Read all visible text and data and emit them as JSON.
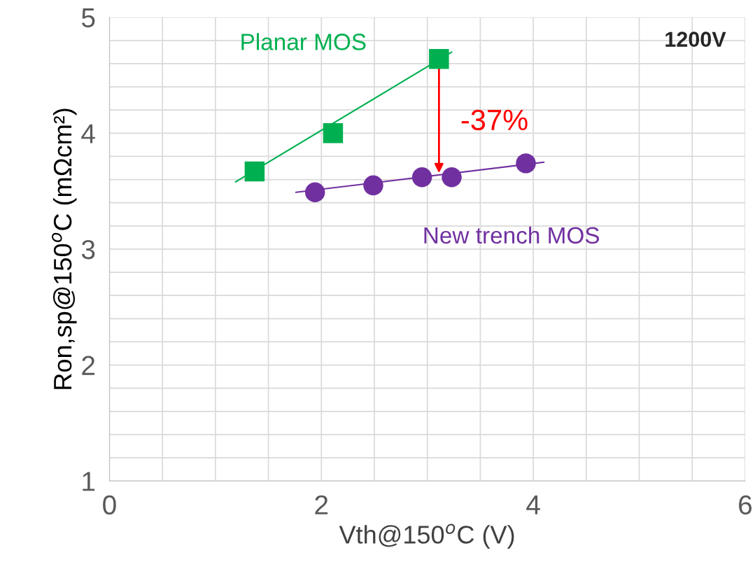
{
  "chart_data": {
    "type": "scatter",
    "xlabel": "Vth@150$^{o}$C (V)",
    "ylabel": "Ron,sp@150$^{o}$C (mΩcm²)",
    "xlim": [
      0,
      6
    ],
    "ylim": [
      1,
      5
    ],
    "xticks": [
      0,
      {
        "value": 0.5,
        "label": null
      },
      {
        "value": 1,
        "label": null
      },
      {
        "value": 1.5,
        "label": null
      },
      2,
      {
        "value": 2.5,
        "label": null
      },
      {
        "value": 3,
        "label": null
      },
      {
        "value": 3.5,
        "label": null
      },
      4,
      {
        "value": 4.5,
        "label": null
      },
      {
        "value": 5,
        "label": null
      },
      {
        "value": 5.5,
        "label": null
      },
      6
    ],
    "yticks": [
      1,
      {
        "value": 1.2,
        "label": null
      },
      {
        "value": 1.4,
        "label": null
      },
      {
        "value": 1.6,
        "label": null
      },
      {
        "value": 1.8,
        "label": null
      },
      2,
      {
        "value": 2.2,
        "label": null
      },
      {
        "value": 2.4,
        "label": null
      },
      {
        "value": 2.6,
        "label": null
      },
      {
        "value": 2.8,
        "label": null
      },
      3,
      {
        "value": 3.2,
        "label": null
      },
      {
        "value": 3.4,
        "label": null
      },
      {
        "value": 3.6,
        "label": null
      },
      {
        "value": 3.8,
        "label": null
      },
      4,
      {
        "value": 4.2,
        "label": null
      },
      {
        "value": 4.4,
        "label": null
      },
      {
        "value": 4.6,
        "label": null
      },
      {
        "value": 4.8,
        "label": null
      },
      5
    ],
    "grid": true,
    "legend": false,
    "series": [
      {
        "name": "Planar MOS",
        "color": "#00b050",
        "marker": "square",
        "x": [
          1.37,
          2.11,
          3.11
        ],
        "values": [
          3.67,
          4.0,
          4.64
        ]
      },
      {
        "name": "New trench MOS",
        "color": "#7030a0",
        "marker": "circle",
        "x": [
          1.94,
          2.49,
          2.95,
          3.23,
          3.93
        ],
        "values": [
          3.49,
          3.55,
          3.62,
          3.62,
          3.74
        ]
      },
      {
        "type": "line",
        "color": "#00b050",
        "x": [
          1.19,
          3.23
        ],
        "values": [
          3.58,
          4.7
        ]
      },
      {
        "type": "line",
        "color": "#7030a0",
        "x": [
          1.76,
          4.1
        ],
        "values": [
          3.49,
          3.75
        ]
      }
    ],
    "annotations": [
      {
        "text": "-37%",
        "x": 3.11,
        "y": 3.64
      },
      "1200V"
    ]
  }
}
